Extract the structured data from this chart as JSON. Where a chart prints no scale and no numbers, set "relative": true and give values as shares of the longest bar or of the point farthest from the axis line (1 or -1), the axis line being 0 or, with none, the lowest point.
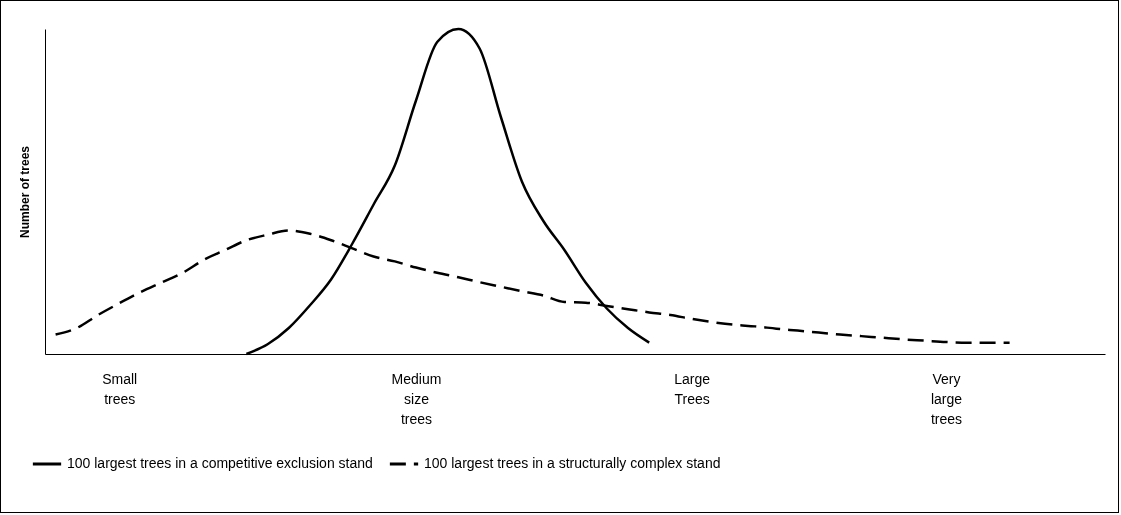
{
  "chart_data": {
    "type": "line",
    "relative": true,
    "ylabel": "Number of trees",
    "categories": [
      null,
      null,
      null,
      "Small trees",
      null,
      null,
      null,
      null,
      null,
      null,
      null,
      null,
      null,
      null,
      null,
      null,
      null,
      "Medium size trees",
      null,
      null,
      null,
      null,
      null,
      null,
      null,
      null,
      null,
      null,
      null,
      null,
      "Large Trees",
      null,
      null,
      null,
      null,
      null,
      null,
      null,
      null,
      null,
      null,
      null,
      "Very large trees",
      null,
      null,
      null,
      null,
      null,
      null,
      null
    ],
    "legend": "bottom",
    "grid": false,
    "series": [
      {
        "name": "100 largest trees in a competitive exclusion stand",
        "color": "#000000",
        "line_style": "solid",
        "values": [
          null,
          null,
          null,
          null,
          null,
          null,
          null,
          null,
          null,
          0,
          0.03,
          0.08,
          0.15,
          0.23,
          0.34,
          0.46,
          0.58,
          0.78,
          0.96,
          1,
          0.94,
          0.73,
          0.53,
          0.41,
          0.32,
          0.22,
          0.14,
          0.08,
          0.035,
          null,
          null,
          null,
          null,
          null,
          null,
          null,
          null,
          null,
          null,
          null,
          null,
          null,
          null,
          null,
          null,
          null,
          null,
          null,
          null,
          null
        ]
      },
      {
        "name": "100 largest trees in a structurally complex stand",
        "color": "#000000",
        "line_style": "dashed",
        "values": [
          0.06,
          0.08,
          0.12,
          0.156,
          0.19,
          0.22,
          0.25,
          0.29,
          0.32,
          0.35,
          0.367,
          0.38,
          0.37,
          0.35,
          0.325,
          0.3,
          0.285,
          0.266,
          0.25,
          0.236,
          0.221,
          0.207,
          0.193,
          0.18,
          0.16,
          0.158,
          0.148,
          0.138,
          0.128,
          0.12,
          0.108,
          0.098,
          0.09,
          0.085,
          0.078,
          0.072,
          0.066,
          0.06,
          0.055,
          0.05,
          0.045,
          0.041,
          0.037,
          0.035,
          0.035,
          0.035,
          null,
          null,
          null,
          null
        ]
      }
    ]
  }
}
